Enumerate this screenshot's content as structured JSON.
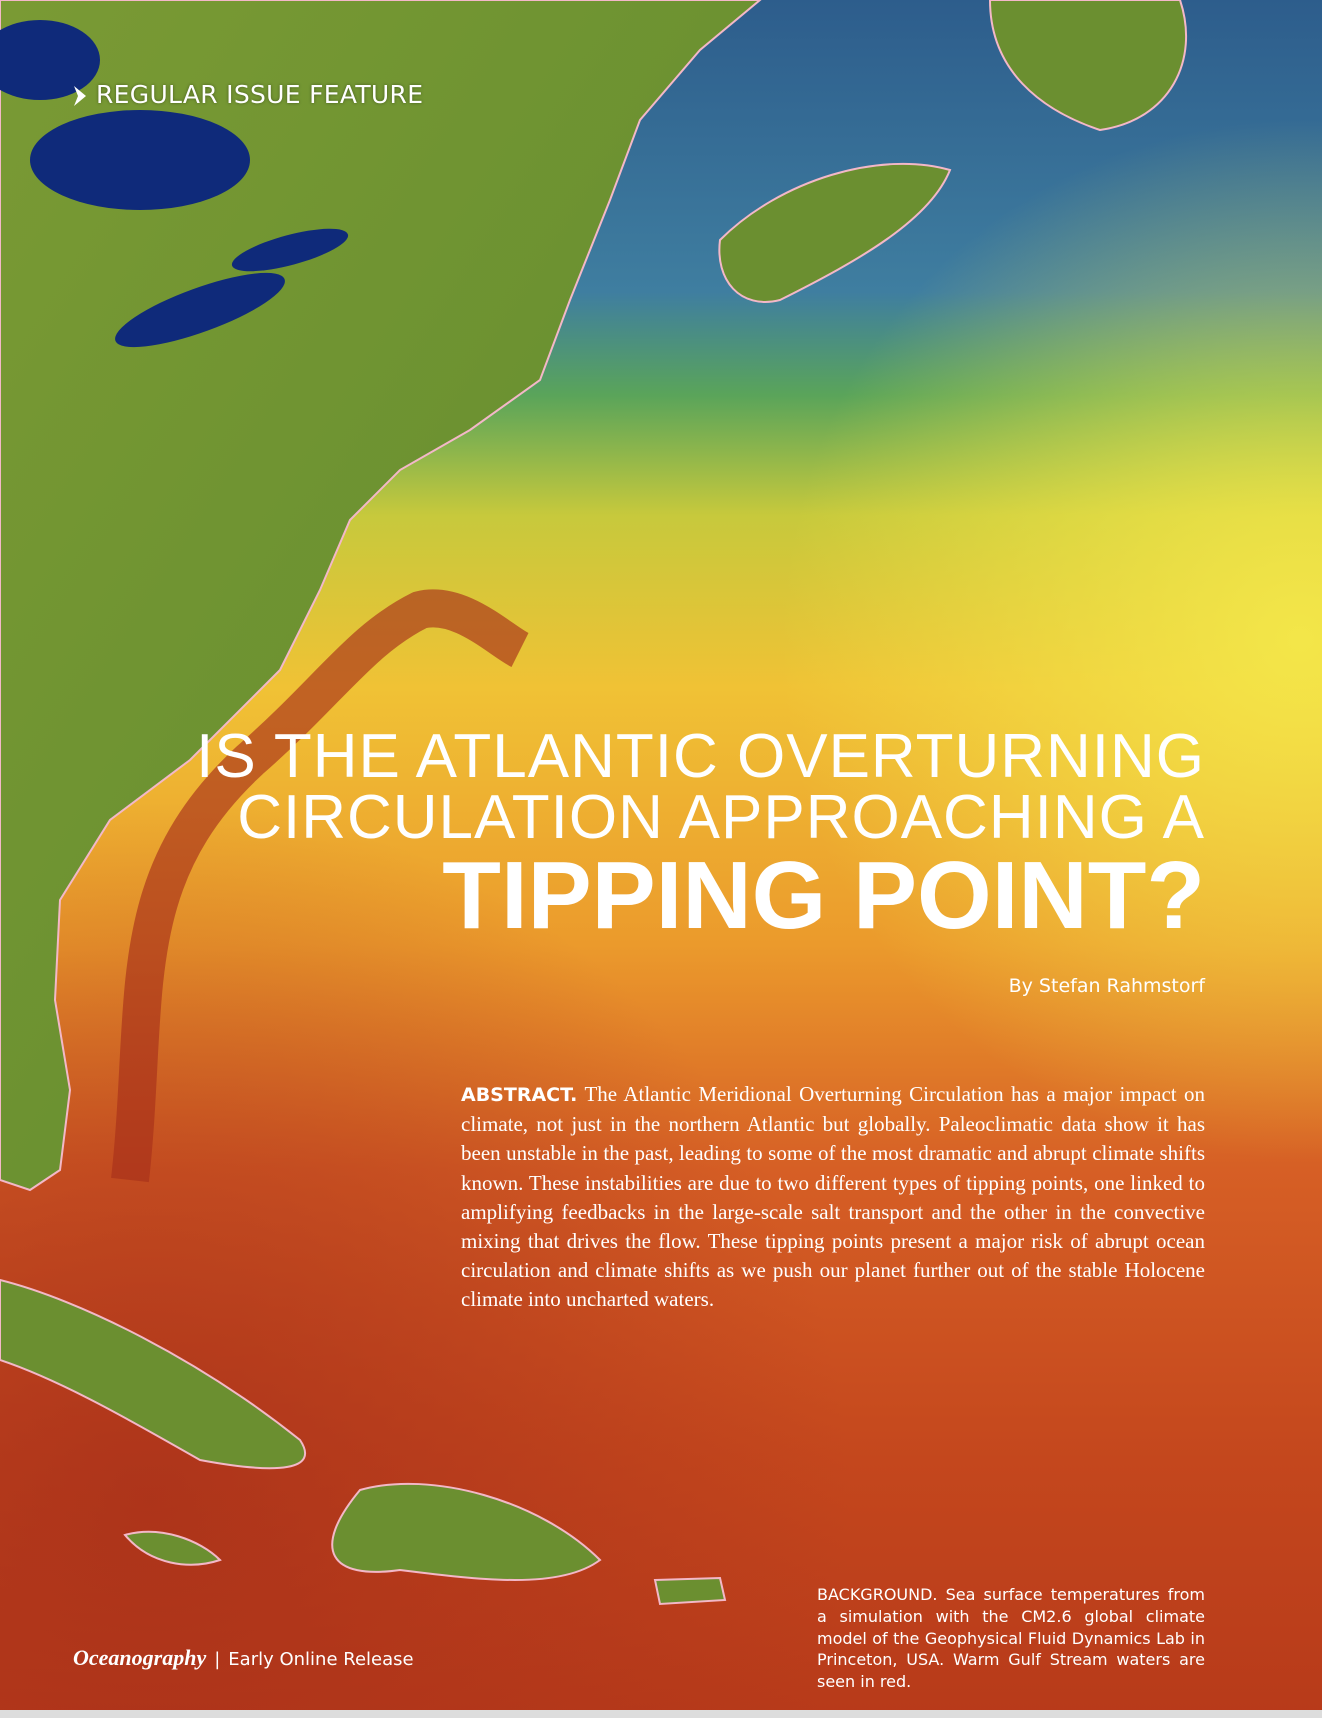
{
  "section_label": "REGULAR ISSUE FEATURE",
  "title": {
    "lines": [
      "IS THE ATLANTIC OVERTURNING",
      "CIRCULATION APPROACHING A"
    ],
    "emphasis": "TIPPING POINT?"
  },
  "byline": "By Stefan Rahmstorf",
  "abstract": {
    "label": "ABSTRACT.",
    "text": "The Atlantic Meridional Overturning Circulation has a major impact on climate, not just in the northern Atlantic but globally. Paleoclimatic data show it has been unstable in the past, leading to some of the most dramatic and abrupt climate shifts known. These instabilities are due to two different types of tipping points, one linked to amplifying feedbacks in the large-scale salt transport and the other in the convective mixing that drives the flow. These tipping points present a major risk of abrupt ocean circulation and climate shifts as we push our planet further out of the stable Holocene climate into uncharted waters."
  },
  "caption": "BACKGROUND. Sea surface temperatures from a simulation with the CM2.6 global climate model of the Geophysical Fluid Dynamics Lab in Princeton, USA. Warm Gulf Stream waters are seen in red.",
  "footer": {
    "journal": "Oceanography",
    "separator": "|",
    "release": "Early Online Release"
  }
}
